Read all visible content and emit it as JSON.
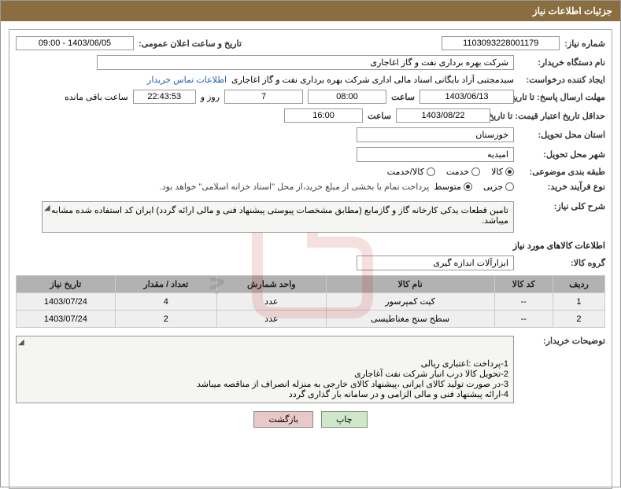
{
  "header": {
    "title": "جزئیات اطلاعات نیاز"
  },
  "fields": {
    "need_no_label": "شماره نیاز:",
    "need_no": "1103093228001179",
    "announce_label": "تاریخ و ساعت اعلان عمومی:",
    "announce_value": "1403/06/05 - 09:00",
    "buyer_org_label": "نام دستگاه خریدار:",
    "buyer_org": "شرکت بهره برداری نفت و گاز اغاجاری",
    "requester_label": "ایجاد کننده درخواست:",
    "requester": "سیدمجتبی آزاد بایگانی اسناد مالی اداری شرکت بهره برداری نفت و گاز اغاجاری",
    "contact_link": "اطلاعات تماس خریدار",
    "deadline_label": "مهلت ارسال پاسخ: تا تاریخ:",
    "deadline_date": "1403/06/13",
    "time_label": "ساعت",
    "deadline_time": "08:00",
    "days_remaining": "7",
    "days_and": "روز و",
    "time_remaining": "22:43:53",
    "remaining_suffix": "ساعت باقی مانده",
    "validity_label": "حداقل تاریخ اعتبار قیمت: تا تاریخ:",
    "validity_date": "1403/08/22",
    "validity_time": "16:00",
    "province_label": "استان محل تحویل:",
    "province": "خوزستان",
    "city_label": "شهر محل تحویل:",
    "city": "امیدیه",
    "category_label": "طبقه بندی موضوعی:",
    "cat_goods": "کالا",
    "cat_service": "خدمت",
    "cat_goods_service": "کالا/خدمت",
    "purchase_type_label": "نوع فرآیند خرید:",
    "pt_small": "جزیی",
    "pt_medium": "متوسط",
    "purchase_note": "پرداخت تمام یا بخشی از مبلغ خرید،از محل \"اسناد خزانه اسلامی\" خواهد بود.",
    "desc_label": "شرح کلی نیاز:",
    "desc_text": "تامین قطعات یدکی کارخانه گاز و گازمایع (مطابق مشخصات پیوستی پیشنهاد فنی و مالی ارائه گردد) ایران کد استفاده شده مشابه میباشد.",
    "items_section": "اطلاعات کالاهای مورد نیاز",
    "group_label": "گروه کالا:",
    "group_value": "ابزارآلات اندازه گیری",
    "notes_label": "توضیحات خریدار:",
    "notes_text": "1-پرداخت :اعتباری ریالی\n2-تحویل کالا درب انبار شرکت نفت آغاجاری\n3-در صورت تولید کالای ایرانی ،پیشنهاد کالای خارجی به منزله انصراف از مناقصه میباشد\n4-ارائه پیشنهاد فنی و مالی الزامی و در سامانه بار گذاری گردد"
  },
  "table": {
    "headers": [
      "ردیف",
      "کد کالا",
      "نام کالا",
      "واحد شمارش",
      "تعداد / مقدار",
      "تاریخ نیاز"
    ],
    "rows": [
      [
        "1",
        "--",
        "کیت کمپرسور",
        "عدد",
        "4",
        "1403/07/24"
      ],
      [
        "2",
        "--",
        "سطح سنج مغناطیسی",
        "عدد",
        "2",
        "1403/07/24"
      ]
    ]
  },
  "buttons": {
    "print": "چاپ",
    "back": "بازگشت"
  },
  "colors": {
    "header_bg": "#8a6e3f",
    "th_bg": "#b2b2b2",
    "td_bg": "#efefef",
    "link": "#1a5fb4"
  }
}
